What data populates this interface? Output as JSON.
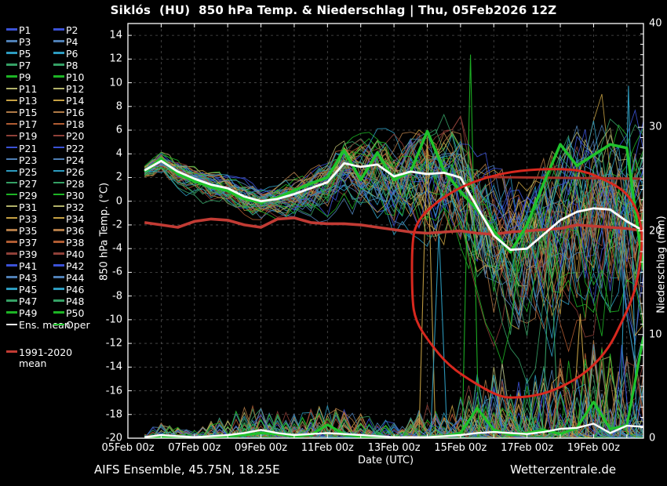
{
  "title": "Siklós  (HU)  850 hPa Temp. & Niederschlag | Thu, 05Feb2026 12Z",
  "footer": {
    "left": "AIFS Ensemble, 45.75N, 18.25E",
    "right": "Wetterzentrale.de"
  },
  "legend": {
    "member_prefix": "P",
    "member_count": 50,
    "palette": [
      "#3b52d6",
      "#4f7fb5",
      "#2d9cc0",
      "#35a065",
      "#1db425",
      "#b2b269",
      "#c6a143",
      "#b07a46",
      "#b05c32",
      "#8f4038"
    ],
    "ens_mean_label": "Ens. mean",
    "ens_mean_color": "#ffffff",
    "oper_label": "Oper",
    "oper_color": "#1fc32c",
    "climate_label_line1": "1991-2020",
    "climate_label_line2": "mean",
    "climate_color": "#c23b34"
  },
  "chart_data": {
    "type": "line",
    "title": "Siklós (HU) 850 hPa Temp. & Niederschlag | Thu, 05Feb2026 12Z",
    "xlabel": "Date (UTC)",
    "ylabel_left": "850 hPa Temp. (°C)",
    "ylabel_right": "Niederschlag (mm)",
    "background": "#000000",
    "frame_color": "#ffffff",
    "grid_color": "#6a6a6a",
    "grid": {
      "vertical_step_days": 1,
      "horizontal_step_temp": 2,
      "style": "dashed"
    },
    "x_axis": {
      "range_days": [
        0,
        15.5
      ],
      "tick_labels": [
        {
          "day": 0,
          "label": "05Feb 00z"
        },
        {
          "day": 2,
          "label": "07Feb 00z"
        },
        {
          "day": 4,
          "label": "09Feb 00z"
        },
        {
          "day": 6,
          "label": "11Feb 00z"
        },
        {
          "day": 8,
          "label": "13Feb 00z"
        },
        {
          "day": 10,
          "label": "15Feb 00z"
        },
        {
          "day": 12,
          "label": "17Feb 00z"
        },
        {
          "day": 14,
          "label": "19Feb 00z"
        }
      ]
    },
    "temp_axis": {
      "min": -20,
      "max": 15,
      "ticks": [
        14,
        12,
        10,
        8,
        6,
        4,
        2,
        0,
        -2,
        -4,
        -6,
        -8,
        -10,
        -12,
        -14,
        -16,
        -18,
        -20
      ]
    },
    "precip_axis": {
      "min": 0,
      "max": 40,
      "ticks": [
        40,
        30,
        20,
        10,
        0
      ],
      "minor_step_mm": 1
    },
    "series_time": {
      "start_day": 0.5,
      "step_day": 0.5,
      "points": 31
    },
    "series": {
      "ens_mean_temp": [
        2.6,
        3.4,
        2.5,
        1.9,
        1.4,
        1.1,
        0.4,
        0.0,
        0.2,
        0.6,
        1.1,
        1.6,
        3.2,
        2.9,
        3.1,
        2.1,
        2.5,
        2.3,
        2.4,
        2.0,
        -0.5,
        -2.9,
        -4.1,
        -4.0,
        -2.8,
        -1.6,
        -0.9,
        -0.6,
        -0.7,
        -1.7,
        -2.5
      ],
      "oper_temp": [
        2.5,
        3.6,
        2.3,
        1.7,
        1.2,
        0.9,
        0.2,
        -0.1,
        0.3,
        0.9,
        1.5,
        2.0,
        4.3,
        1.8,
        4.1,
        1.8,
        2.5,
        5.9,
        2.6,
        0.8,
        -0.7,
        -2.5,
        -4.3,
        -2.0,
        1.5,
        4.8,
        3.0,
        3.9,
        4.8,
        4.5,
        -5.8
      ],
      "climate_mean_temp": [
        -1.8,
        -2.0,
        -2.2,
        -1.7,
        -1.5,
        -1.6,
        -2.0,
        -2.2,
        -1.5,
        -1.4,
        -1.8,
        -1.9,
        -1.9,
        -2.0,
        -2.2,
        -2.4,
        -2.6,
        -2.7,
        -2.6,
        -2.5,
        -2.7,
        -2.8,
        -2.6,
        -2.5,
        -2.4,
        -2.3,
        -2.0,
        -2.1,
        -2.2,
        -2.3,
        -2.5
      ],
      "ens_mean_precip": [
        0.1,
        0.3,
        0.2,
        0.1,
        0.2,
        0.3,
        0.5,
        0.8,
        0.5,
        0.3,
        0.4,
        0.5,
        0.4,
        0.3,
        0.2,
        0.1,
        0.1,
        0.1,
        0.2,
        0.3,
        0.5,
        0.6,
        0.5,
        0.4,
        0.6,
        0.9,
        1.0,
        1.4,
        0.5,
        1.2,
        1.1
      ],
      "oper_precip": [
        0,
        0.1,
        0,
        0,
        0.1,
        0.2,
        0.3,
        0.5,
        0.4,
        0.2,
        0.3,
        1.3,
        0.4,
        0.1,
        0,
        0.1,
        0,
        0.1,
        0.2,
        0.5,
        2.9,
        0.8,
        0.3,
        0.5,
        0.8,
        0.4,
        1.0,
        3.5,
        0.9,
        1.2,
        9.8
      ]
    },
    "ensemble": {
      "count": 50,
      "temp_spread_half": [
        0.5,
        0.8,
        0.9,
        0.9,
        1.0,
        1.0,
        1.1,
        1.1,
        1.2,
        1.3,
        1.5,
        1.8,
        2.1,
        2.4,
        2.7,
        3.0,
        3.3,
        3.6,
        3.9,
        4.2,
        4.6,
        5.0,
        5.4,
        5.8,
        6.2,
        6.6,
        7.0,
        7.3,
        7.6,
        7.9,
        8.2
      ],
      "temp_low_skew": 1.35,
      "precip_envelope": [
        0.4,
        1.2,
        0.8,
        0.6,
        1.2,
        1.8,
        2.2,
        2.6,
        2.2,
        1.8,
        2.2,
        2.6,
        2.2,
        1.8,
        1.4,
        1.2,
        1.5,
        2.5,
        2.0,
        3.0,
        5.0,
        6.0,
        5.0,
        4.5,
        5.5,
        6.0,
        6.5,
        7.5,
        6.5,
        6.0,
        7.5
      ],
      "precip_outliers": [
        {
          "day": 9.0,
          "mm": 29,
          "color": "#c6a143"
        },
        {
          "day": 9.35,
          "mm": 20,
          "color": "#2d9cc0"
        },
        {
          "day": 10.3,
          "mm": 37,
          "color": "#1db425"
        },
        {
          "day": 12.7,
          "mm": 19,
          "color": "#35a065"
        },
        {
          "day": 13.6,
          "mm": 12,
          "color": "#c6a143"
        },
        {
          "day": 14.85,
          "mm": 9,
          "color": "#3b52d6"
        },
        {
          "day": 15.05,
          "mm": 34,
          "color": "#2d9cc0"
        }
      ]
    },
    "annotations": {
      "loop_color": "#d8281e",
      "loop_points_day_temp": [
        [
          8.54,
          -3.1
        ],
        [
          8.73,
          -1.6
        ],
        [
          9.13,
          -0.4
        ],
        [
          9.91,
          1.1
        ],
        [
          10.85,
          2.1
        ],
        [
          11.79,
          2.6
        ],
        [
          12.83,
          2.75
        ],
        [
          13.68,
          2.6
        ],
        [
          14.39,
          1.75
        ],
        [
          14.95,
          0.85
        ],
        [
          15.31,
          -0.7
        ],
        [
          15.45,
          -2.35
        ],
        [
          15.45,
          -4.05
        ],
        [
          15.35,
          -6.25
        ],
        [
          15.16,
          -8.3
        ],
        [
          14.83,
          -10.3
        ],
        [
          14.46,
          -12.4
        ],
        [
          13.89,
          -14.2
        ],
        [
          13.18,
          -15.5
        ],
        [
          12.43,
          -16.35
        ],
        [
          11.63,
          -16.6
        ],
        [
          11.18,
          -16.5
        ],
        [
          10.45,
          -15.4
        ],
        [
          9.65,
          -13.9
        ],
        [
          9.06,
          -11.9
        ],
        [
          8.65,
          -10.1
        ],
        [
          8.54,
          -8.2
        ]
      ],
      "segment": {
        "from": [
          10.7,
          2.05
        ],
        "to": [
          15.45,
          1.9
        ],
        "color": "#a63028",
        "width": 3
      }
    }
  }
}
